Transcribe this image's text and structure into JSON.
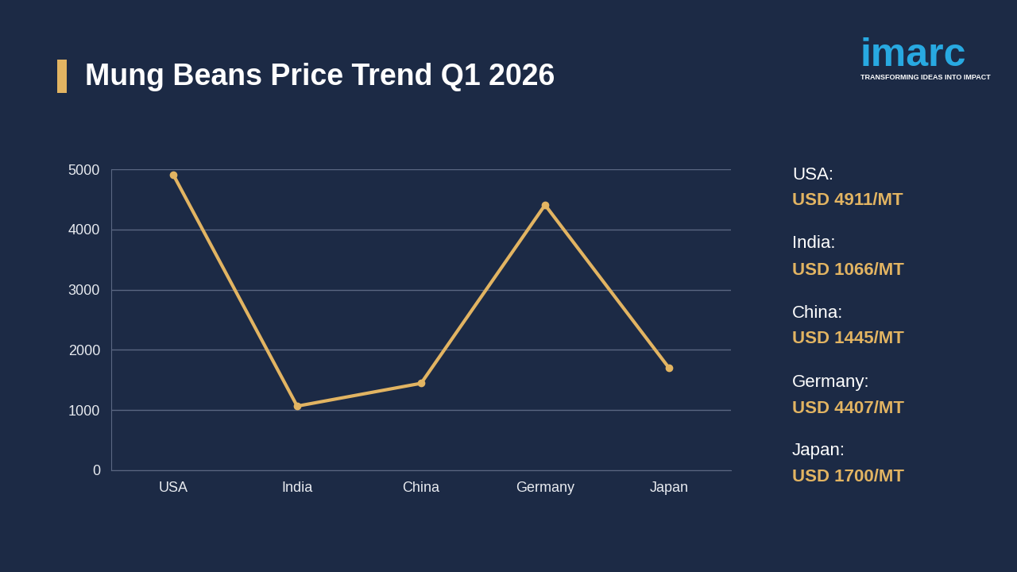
{
  "chart_data": {
    "type": "line",
    "title": "Mung Beans Price Trend Q1 2026",
    "categories": [
      "USA",
      "India",
      "China",
      "Germany",
      "Japan"
    ],
    "values": [
      4911,
      1066,
      1445,
      4407,
      1700
    ],
    "color": "#e2b462",
    "marker": "o",
    "line_style": "solid",
    "ylim": [
      0,
      5000
    ],
    "yticks": [
      0,
      1000,
      2000,
      3000,
      4000,
      5000
    ],
    "grid": true,
    "annotations": [
      [
        "USA:",
        "USD 4911/MT"
      ],
      [
        "India:",
        "USD 1066/MT"
      ],
      [
        "China:",
        "USD 1445/MT"
      ],
      [
        "Germany:",
        "USD 4407/MT"
      ],
      [
        "Japan:",
        "USD 1700/MT"
      ]
    ],
    "logo": "imarc",
    "tagline": "TRANSFORMING IDEAS INTO IMPACT"
  }
}
